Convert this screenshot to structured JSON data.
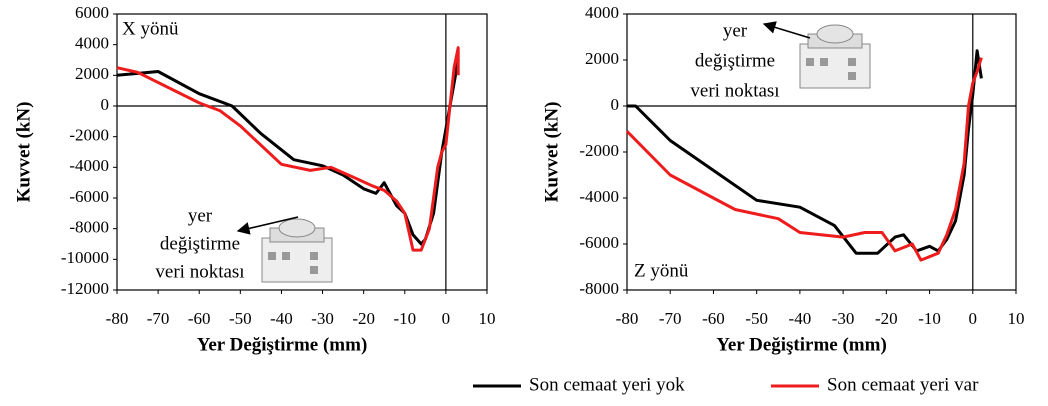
{
  "legend": [
    {
      "name": "Son cemaat yeri yok",
      "color": "#000000"
    },
    {
      "name": "Son cemaat yeri var",
      "color": "#ee1c1c"
    }
  ],
  "chart_data": [
    {
      "type": "line",
      "x_label": "Yer Değiştirme (mm)",
      "y_label": "Kuvvet (kN)",
      "direction_label": "X yönü",
      "note": [
        "yer",
        "değiştirme",
        "veri noktası"
      ],
      "xlim": [
        -80,
        10
      ],
      "xticks": [
        -80,
        -70,
        -60,
        -50,
        -40,
        -30,
        -20,
        -10,
        0,
        10
      ],
      "ylim": [
        -12000,
        6000
      ],
      "yticks": [
        -12000,
        -10000,
        -8000,
        -6000,
        -4000,
        -2000,
        0,
        2000,
        4000,
        6000
      ],
      "series": [
        {
          "x": [
            -80,
            -70,
            -60,
            -52,
            -45,
            -37,
            -30,
            -25,
            -20,
            -17,
            -15,
            -12,
            -10,
            -8,
            -6,
            -5,
            -3,
            -2,
            -1,
            0,
            1,
            2,
            3
          ],
          "values": [
            2000,
            2250,
            800,
            0,
            -1800,
            -3500,
            -3900,
            -4500,
            -5400,
            -5700,
            -5000,
            -6500,
            -7000,
            -8400,
            -9000,
            -8700,
            -7000,
            -5000,
            -3000,
            -1500,
            0,
            1500,
            3000
          ]
        },
        {
          "x": [
            -80,
            -75,
            -60,
            -55,
            -50,
            -40,
            -33,
            -28,
            -22,
            -18,
            -15,
            -12,
            -10,
            -8,
            -6,
            -4,
            -2,
            -1,
            0,
            1,
            2,
            3,
            3
          ],
          "values": [
            2500,
            2200,
            200,
            -300,
            -1300,
            -3800,
            -4200,
            -4000,
            -4700,
            -5200,
            -5500,
            -6200,
            -7000,
            -9400,
            -9400,
            -8000,
            -4000,
            -3000,
            -2500,
            0,
            2500,
            3800,
            2000
          ]
        }
      ]
    },
    {
      "type": "line",
      "x_label": "Yer Değiştirme (mm)",
      "y_label": "Kuvvet (kN)",
      "direction_label": "Z yönü",
      "note": [
        "yer",
        "değiştirme",
        "veri noktası"
      ],
      "xlim": [
        -80,
        10
      ],
      "xticks": [
        -80,
        -70,
        -60,
        -50,
        -40,
        -30,
        -20,
        -10,
        0,
        10
      ],
      "ylim": [
        -8000,
        4000
      ],
      "yticks": [
        -8000,
        -6000,
        -4000,
        -2000,
        0,
        2000,
        4000
      ],
      "series": [
        {
          "x": [
            -80,
            -78,
            -70,
            -60,
            -50,
            -40,
            -32,
            -27,
            -22,
            -18,
            -16,
            -13,
            -10,
            -8,
            -6,
            -4,
            -2,
            -1,
            0,
            1,
            2
          ],
          "values": [
            0,
            0,
            -1500,
            -2800,
            -4100,
            -4400,
            -5200,
            -6400,
            -6400,
            -5700,
            -5600,
            -6300,
            -6100,
            -6300,
            -5800,
            -5000,
            -3000,
            -1000,
            500,
            2400,
            1200
          ]
        },
        {
          "x": [
            -80,
            -70,
            -60,
            -55,
            -45,
            -40,
            -30,
            -25,
            -21,
            -18,
            -14,
            -12,
            -8,
            -6,
            -4,
            -2,
            -1,
            0,
            1,
            2
          ],
          "values": [
            -1100,
            -3000,
            -4000,
            -4500,
            -4900,
            -5500,
            -5700,
            -5500,
            -5500,
            -6300,
            -6000,
            -6700,
            -6400,
            -5600,
            -4500,
            -2500,
            0,
            1000,
            1500,
            2100
          ]
        }
      ]
    }
  ]
}
